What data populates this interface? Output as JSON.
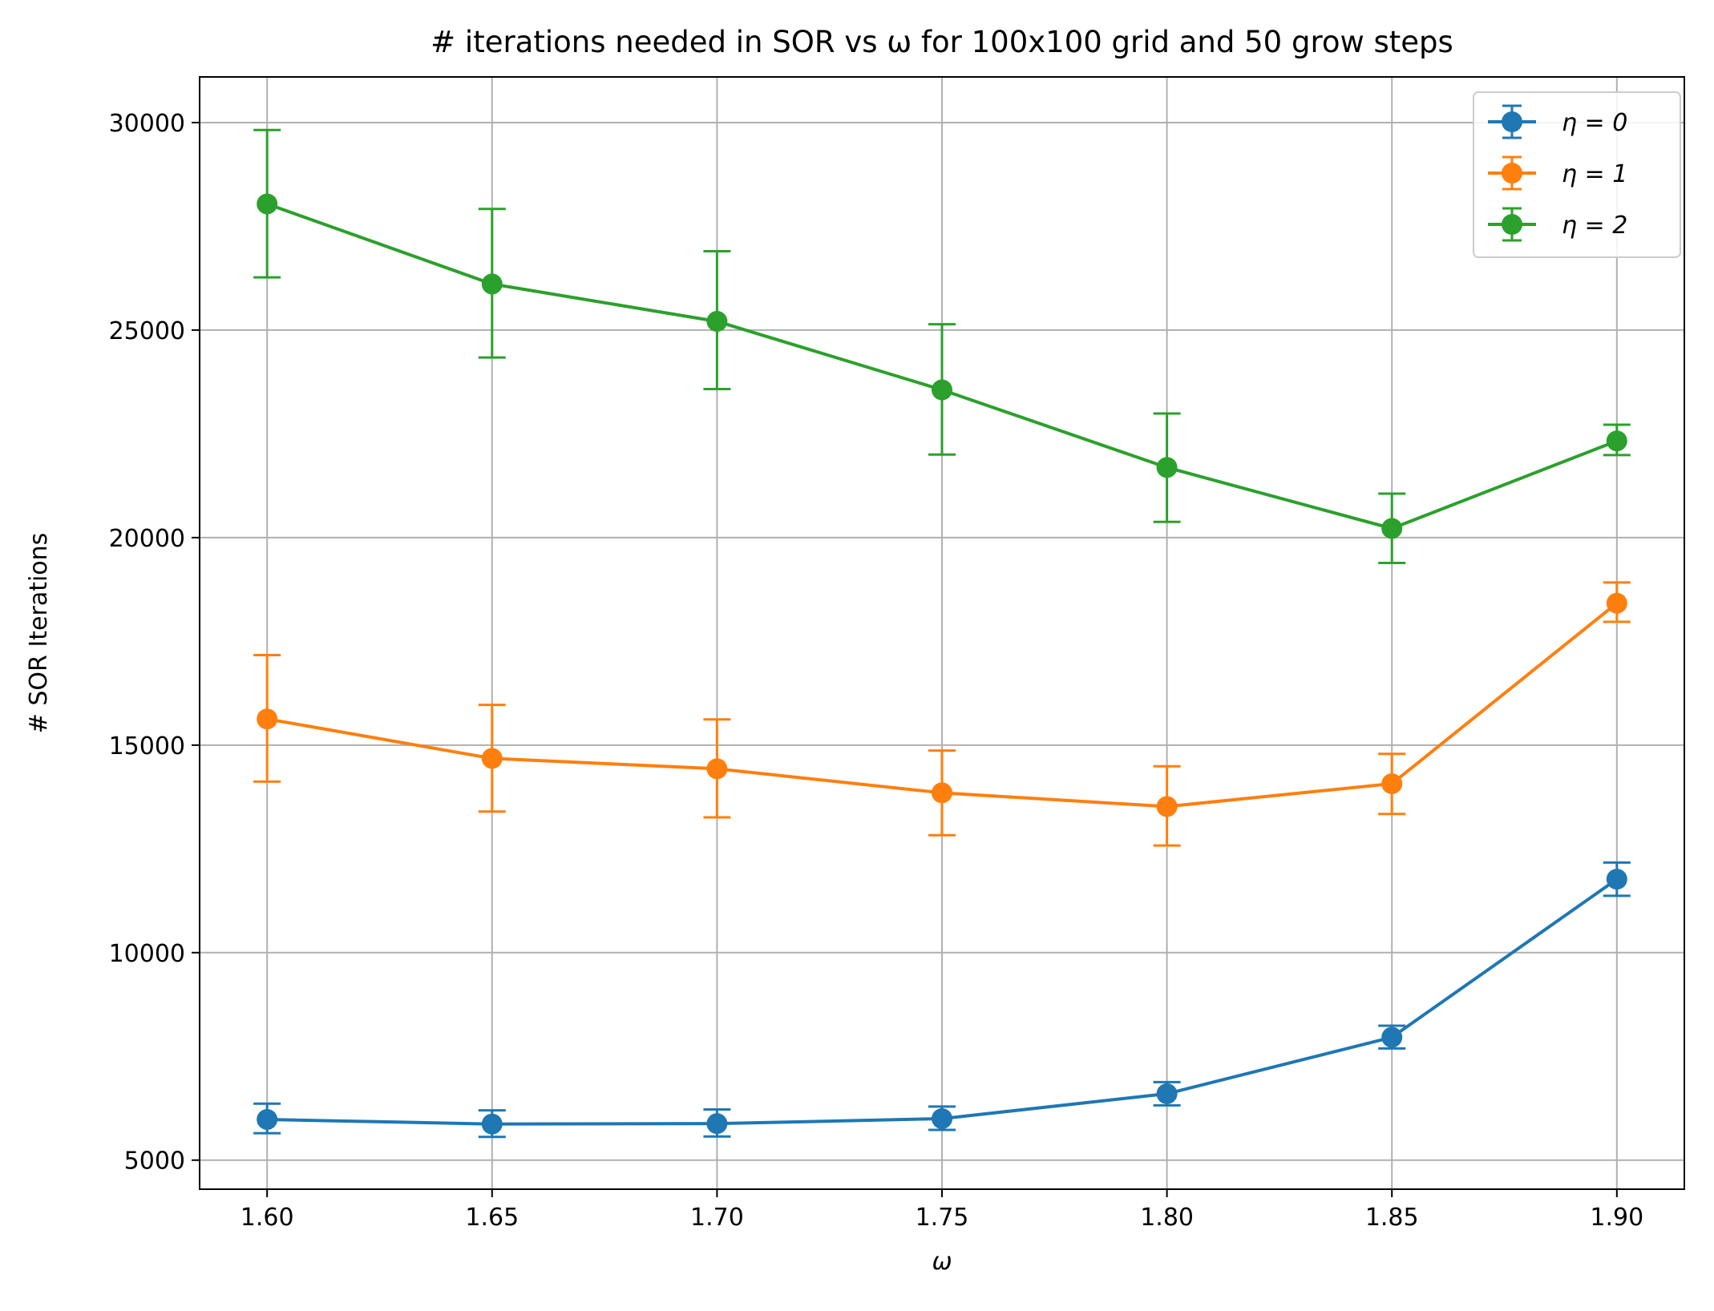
{
  "chart_data": {
    "type": "line",
    "title": "# iterations needed in SOR vs ω for 100x100 grid and 50 grow steps",
    "xlabel": "ω",
    "ylabel": "# SOR Iterations",
    "x": [
      1.6,
      1.65,
      1.7,
      1.75,
      1.8,
      1.85,
      1.9
    ],
    "x_tick_labels": [
      "1.60",
      "1.65",
      "1.70",
      "1.75",
      "1.80",
      "1.85",
      "1.90"
    ],
    "y_ticks": [
      5000,
      10000,
      15000,
      20000,
      25000,
      30000
    ],
    "y_tick_labels": [
      "5000",
      "10000",
      "15000",
      "20000",
      "25000",
      "30000"
    ],
    "xlim": [
      1.585,
      1.915
    ],
    "ylim": [
      4300,
      31100
    ],
    "grid": true,
    "legend_position": "top-right",
    "series": [
      {
        "name": "η = 0",
        "color": "#1f77b4",
        "values": [
          5980,
          5870,
          5880,
          6000,
          6600,
          7960,
          11770
        ],
        "err_low": [
          5650,
          5560,
          5570,
          5730,
          6320,
          7690,
          11370
        ],
        "err_high": [
          6360,
          6200,
          6220,
          6290,
          6880,
          8240,
          12170
        ]
      },
      {
        "name": "η = 1",
        "color": "#ff7f0e",
        "values": [
          15630,
          14680,
          14430,
          13850,
          13520,
          14070,
          18420
        ],
        "err_low": [
          14120,
          13400,
          13260,
          12830,
          12580,
          13340,
          17970
        ],
        "err_high": [
          17170,
          15970,
          15620,
          14870,
          14490,
          14790,
          18920
        ]
      },
      {
        "name": "η = 2",
        "color": "#2ca02c",
        "values": [
          28040,
          26110,
          25210,
          23560,
          21690,
          20220,
          22330
        ],
        "err_low": [
          26270,
          24340,
          23580,
          22000,
          20380,
          19390,
          21990
        ],
        "err_high": [
          29820,
          27920,
          26900,
          25140,
          22990,
          21060,
          22720
        ]
      }
    ]
  }
}
